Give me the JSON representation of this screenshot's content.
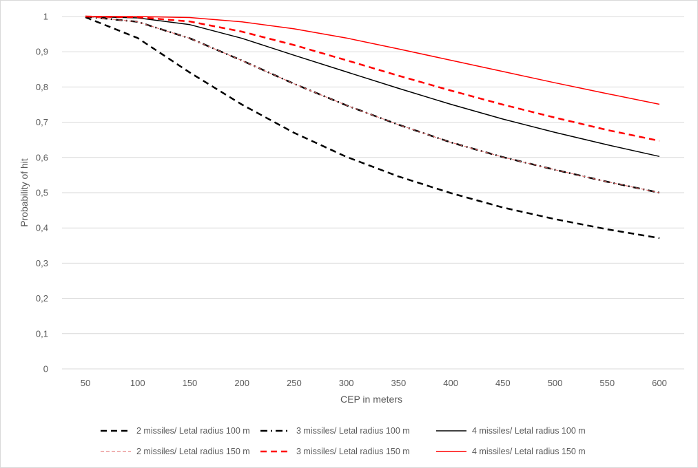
{
  "chart_data": {
    "type": "line",
    "title": "",
    "xlabel": "CEP in meters",
    "ylabel": "Probability of hit",
    "x": [
      50,
      100,
      150,
      200,
      250,
      300,
      350,
      400,
      450,
      500,
      550,
      600
    ],
    "x_tick_labels": [
      "50",
      "100",
      "150",
      "200",
      "250",
      "300",
      "350",
      "400",
      "450",
      "500",
      "550",
      "600"
    ],
    "ylim": [
      0,
      1
    ],
    "y_tick_labels": [
      "0",
      "0,1",
      "0,2",
      "0,3",
      "0,4",
      "0,5",
      "0,6",
      "0,7",
      "0,8",
      "0,9",
      "1"
    ],
    "grid": "horizontal",
    "legend_position": "bottom",
    "series": [
      {
        "name": "2 missiles/ Letal radius 100 m",
        "color": "#000000",
        "dash": "long-dash",
        "values": [
          0.998,
          0.939,
          0.841,
          0.75,
          0.67,
          0.602,
          0.546,
          0.499,
          0.458,
          0.425,
          0.396,
          0.371
        ]
      },
      {
        "name": "3 missiles/ Letal radius 100 m",
        "color": "#000000",
        "dash": "long-dash-dot",
        "values": [
          1.0,
          0.985,
          0.938,
          0.875,
          0.809,
          0.748,
          0.693,
          0.643,
          0.601,
          0.565,
          0.531,
          0.5
        ]
      },
      {
        "name": "4 missiles/ Letal radius 100 m",
        "color": "#000000",
        "dash": "solid",
        "values": [
          1.0,
          0.996,
          0.977,
          0.938,
          0.89,
          0.843,
          0.796,
          0.751,
          0.709,
          0.671,
          0.636,
          0.603
        ]
      },
      {
        "name": "2 missiles/ Letal radius 150 m",
        "color": "#e06666",
        "dash": "dash",
        "values": [
          1.0,
          0.985,
          0.938,
          0.875,
          0.809,
          0.748,
          0.693,
          0.643,
          0.601,
          0.565,
          0.531,
          0.5
        ]
      },
      {
        "name": "3 missiles/ Letal radius 150 m",
        "color": "#ff0000",
        "dash": "long-dash",
        "values": [
          1.0,
          0.998,
          0.986,
          0.957,
          0.919,
          0.876,
          0.832,
          0.79,
          0.75,
          0.713,
          0.678,
          0.647
        ]
      },
      {
        "name": "4 missiles/ Letal radius 150 m",
        "color": "#ff0000",
        "dash": "solid",
        "values": [
          1.0,
          1.0,
          0.997,
          0.985,
          0.965,
          0.939,
          0.908,
          0.876,
          0.844,
          0.812,
          0.781,
          0.751
        ]
      }
    ]
  }
}
